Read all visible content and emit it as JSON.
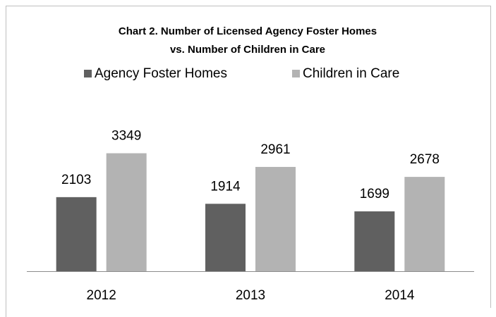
{
  "chart_data": {
    "type": "bar",
    "title": [
      "Chart 2. Number of Licensed Agency Foster Homes",
      "vs. Number of Children in Care"
    ],
    "categories": [
      "2012",
      "2013",
      "2014"
    ],
    "series": [
      {
        "name": "Agency Foster Homes",
        "color": "#606060",
        "values": [
          2103,
          1914,
          1699
        ]
      },
      {
        "name": "Children in Care",
        "color": "#b3b3b3",
        "values": [
          3349,
          2961,
          2678
        ]
      }
    ],
    "ylim": [
      0,
      4000
    ],
    "legend": "top"
  }
}
